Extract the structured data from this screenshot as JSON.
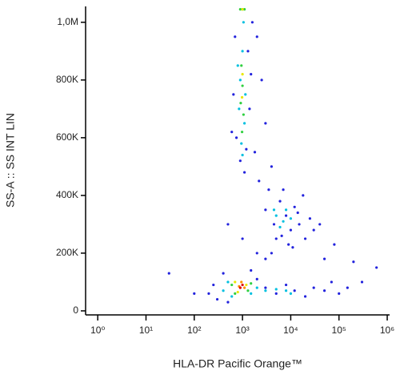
{
  "chart_data": {
    "type": "scatter",
    "xlabel": "HLA-DR Pacific Orange™",
    "ylabel": "SS-A :: SS INT LIN",
    "xscale": "log",
    "xlim": [
      0.56,
      1120000
    ],
    "xticks": [
      {
        "value": 1,
        "label": "10⁰"
      },
      {
        "value": 10,
        "label": "10¹"
      },
      {
        "value": 100,
        "label": "10²"
      },
      {
        "value": 1000,
        "label": "10³"
      },
      {
        "value": 10000,
        "label": "10⁴"
      },
      {
        "value": 100000,
        "label": "10⁵"
      },
      {
        "value": 1000000,
        "label": "10⁶"
      }
    ],
    "ylim": [
      -14000,
      1055000
    ],
    "yticks": [
      0,
      {
        "value": 200000,
        "label": "200K"
      },
      {
        "value": 400000,
        "label": "400K"
      },
      {
        "value": 600000,
        "label": "600K"
      },
      {
        "value": 800000,
        "label": "800K"
      },
      {
        "value": 1000000,
        "label": "1,0M"
      }
    ],
    "series": [
      {
        "color": "#2222dd",
        "x": [
          700,
          1300,
          650,
          1400,
          1500,
          600,
          1200,
          900,
          1100,
          750,
          1600,
          2000,
          2500,
          3000,
          1800,
          2200,
          4000,
          3500,
          3000,
          4500,
          6000,
          8000,
          10000,
          12000,
          15000,
          20000,
          25000,
          5000,
          7000,
          9000,
          4000,
          30000,
          18000,
          6500,
          11000,
          14000,
          40000,
          200,
          250,
          300,
          400,
          500,
          1500,
          2000,
          3000,
          5000,
          8000,
          12000,
          20000,
          30000,
          50000,
          70000,
          100000,
          150000,
          100,
          30,
          300000,
          600000,
          2000,
          1000,
          3000,
          50000,
          80000,
          200000,
          500
        ],
        "values": [
          950000,
          900000,
          750000,
          700000,
          820000,
          620000,
          560000,
          520000,
          480000,
          600000,
          1000000,
          950000,
          800000,
          650000,
          550000,
          450000,
          500000,
          420000,
          350000,
          300000,
          380000,
          330000,
          280000,
          360000,
          300000,
          250000,
          320000,
          250000,
          420000,
          230000,
          200000,
          280000,
          400000,
          260000,
          220000,
          340000,
          300000,
          60000,
          90000,
          40000,
          130000,
          30000,
          140000,
          110000,
          80000,
          60000,
          90000,
          70000,
          50000,
          80000,
          70000,
          100000,
          60000,
          80000,
          60000,
          130000,
          100000,
          150000,
          200000,
          250000,
          180000,
          180000,
          230000,
          170000,
          300000
        ]
      },
      {
        "color": "#00c0e0",
        "x": [
          1000,
          900,
          1100,
          850,
          950,
          1000,
          1050,
          800,
          1150,
          5000,
          7000,
          6000,
          4500,
          8000,
          10000,
          400,
          500,
          1500,
          2000,
          3000,
          5000,
          600,
          8000,
          10000
        ],
        "values": [
          900000,
          800000,
          650000,
          700000,
          580000,
          540000,
          1000000,
          850000,
          750000,
          330000,
          310000,
          290000,
          350000,
          350000,
          320000,
          70000,
          100000,
          60000,
          80000,
          70000,
          75000,
          50000,
          70000,
          60000
        ]
      },
      {
        "color": "#30d040",
        "x": [
          950,
          1000,
          920,
          1050,
          980,
          1000,
          900,
          1100,
          600,
          700,
          1300,
          1500
        ],
        "values": [
          850000,
          780000,
          720000,
          680000,
          620000,
          1045000,
          1045000,
          1045000,
          90000,
          60000,
          70000,
          95000
        ]
      },
      {
        "color": "#e8e800",
        "x": [
          1000,
          980,
          1000,
          700,
          1200,
          800
        ],
        "values": [
          820000,
          740000,
          1045000,
          100000,
          90000,
          65000
        ]
      },
      {
        "color": "#ff9000",
        "x": [
          850,
          1100,
          950
        ],
        "values": [
          85000,
          80000,
          100000
        ]
      },
      {
        "color": "#e00000",
        "x": [
          900,
          1000
        ],
        "values": [
          80000,
          90000
        ]
      }
    ]
  }
}
